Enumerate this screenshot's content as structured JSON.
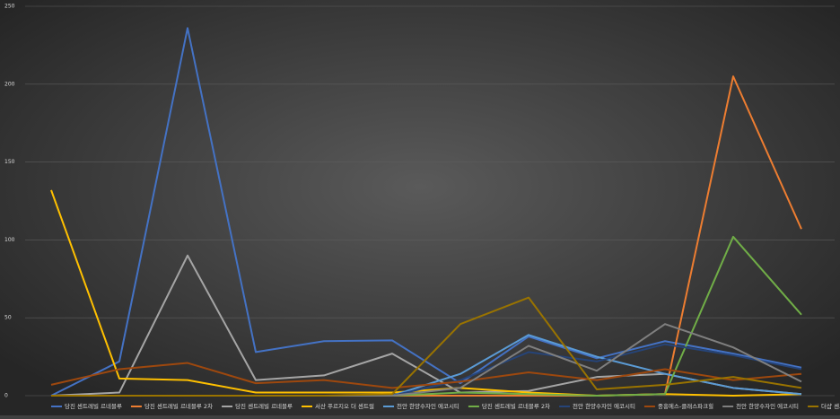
{
  "chart_data": {
    "type": "line",
    "categories": [
      null,
      null,
      null,
      null,
      null,
      null,
      null,
      null,
      null,
      null,
      null,
      null
    ],
    "ylim": [
      0,
      250
    ],
    "yticks": [
      0,
      50,
      100,
      150,
      200,
      250
    ],
    "grid": true,
    "legend": "bottom",
    "series": [
      {
        "name": "당진 센트레빌 르네블루",
        "color": "#4472c4",
        "values": [
          0,
          22,
          236,
          28,
          35,
          35.5,
          8,
          38,
          24,
          35,
          27,
          18
        ]
      },
      {
        "name": "당진 센트레빌 르네블루 2차",
        "color": "#ed7d31",
        "values": [
          0,
          0,
          0,
          0,
          0,
          0,
          0,
          0,
          0,
          1,
          205,
          107
        ]
      },
      {
        "name": "당진 센트레빌 르네블루",
        "color": "#a5a5a5",
        "values": [
          0,
          2,
          90,
          10,
          13,
          27,
          2,
          3,
          12,
          14,
          5,
          1
        ]
      },
      {
        "name": "서산 푸르지오 더 센트럴",
        "color": "#ffc000",
        "values": [
          132,
          11,
          10,
          2,
          2,
          2,
          5,
          2,
          0,
          1,
          0,
          1
        ]
      },
      {
        "name": "천안 한양수자인 에코시티",
        "color": "#5b9bd5",
        "values": [
          0,
          0,
          0,
          0,
          0,
          0,
          14,
          39,
          25,
          14,
          5,
          1
        ]
      },
      {
        "name": "당진 센트레빌 르네블루 2차",
        "color": "#70ad47",
        "values": [
          0,
          0,
          0,
          0,
          0,
          0,
          2,
          1,
          0,
          1,
          102,
          52
        ]
      },
      {
        "name": "천안 한양수자인 에코시티",
        "color": "#264478",
        "values": [
          0,
          0,
          0,
          0,
          0,
          0,
          10,
          28,
          22,
          33,
          26,
          17
        ]
      },
      {
        "name": "중흥에스-클래스파크힐",
        "color": "#9e480e",
        "values": [
          7,
          17,
          21,
          8,
          10,
          5,
          9,
          15,
          10,
          17,
          10,
          14
        ]
      },
      {
        "name": "천안 한양수자인 에코시티",
        "color": "#7f7f7f",
        "values": [
          0,
          0,
          0,
          0,
          0,
          0,
          5,
          32,
          16,
          46,
          31,
          9
        ]
      },
      {
        "name": "더샵 센트로",
        "color": "#997300",
        "values": [
          0,
          0,
          0,
          0,
          0,
          1,
          46,
          63,
          4,
          7,
          12,
          5
        ]
      }
    ]
  }
}
